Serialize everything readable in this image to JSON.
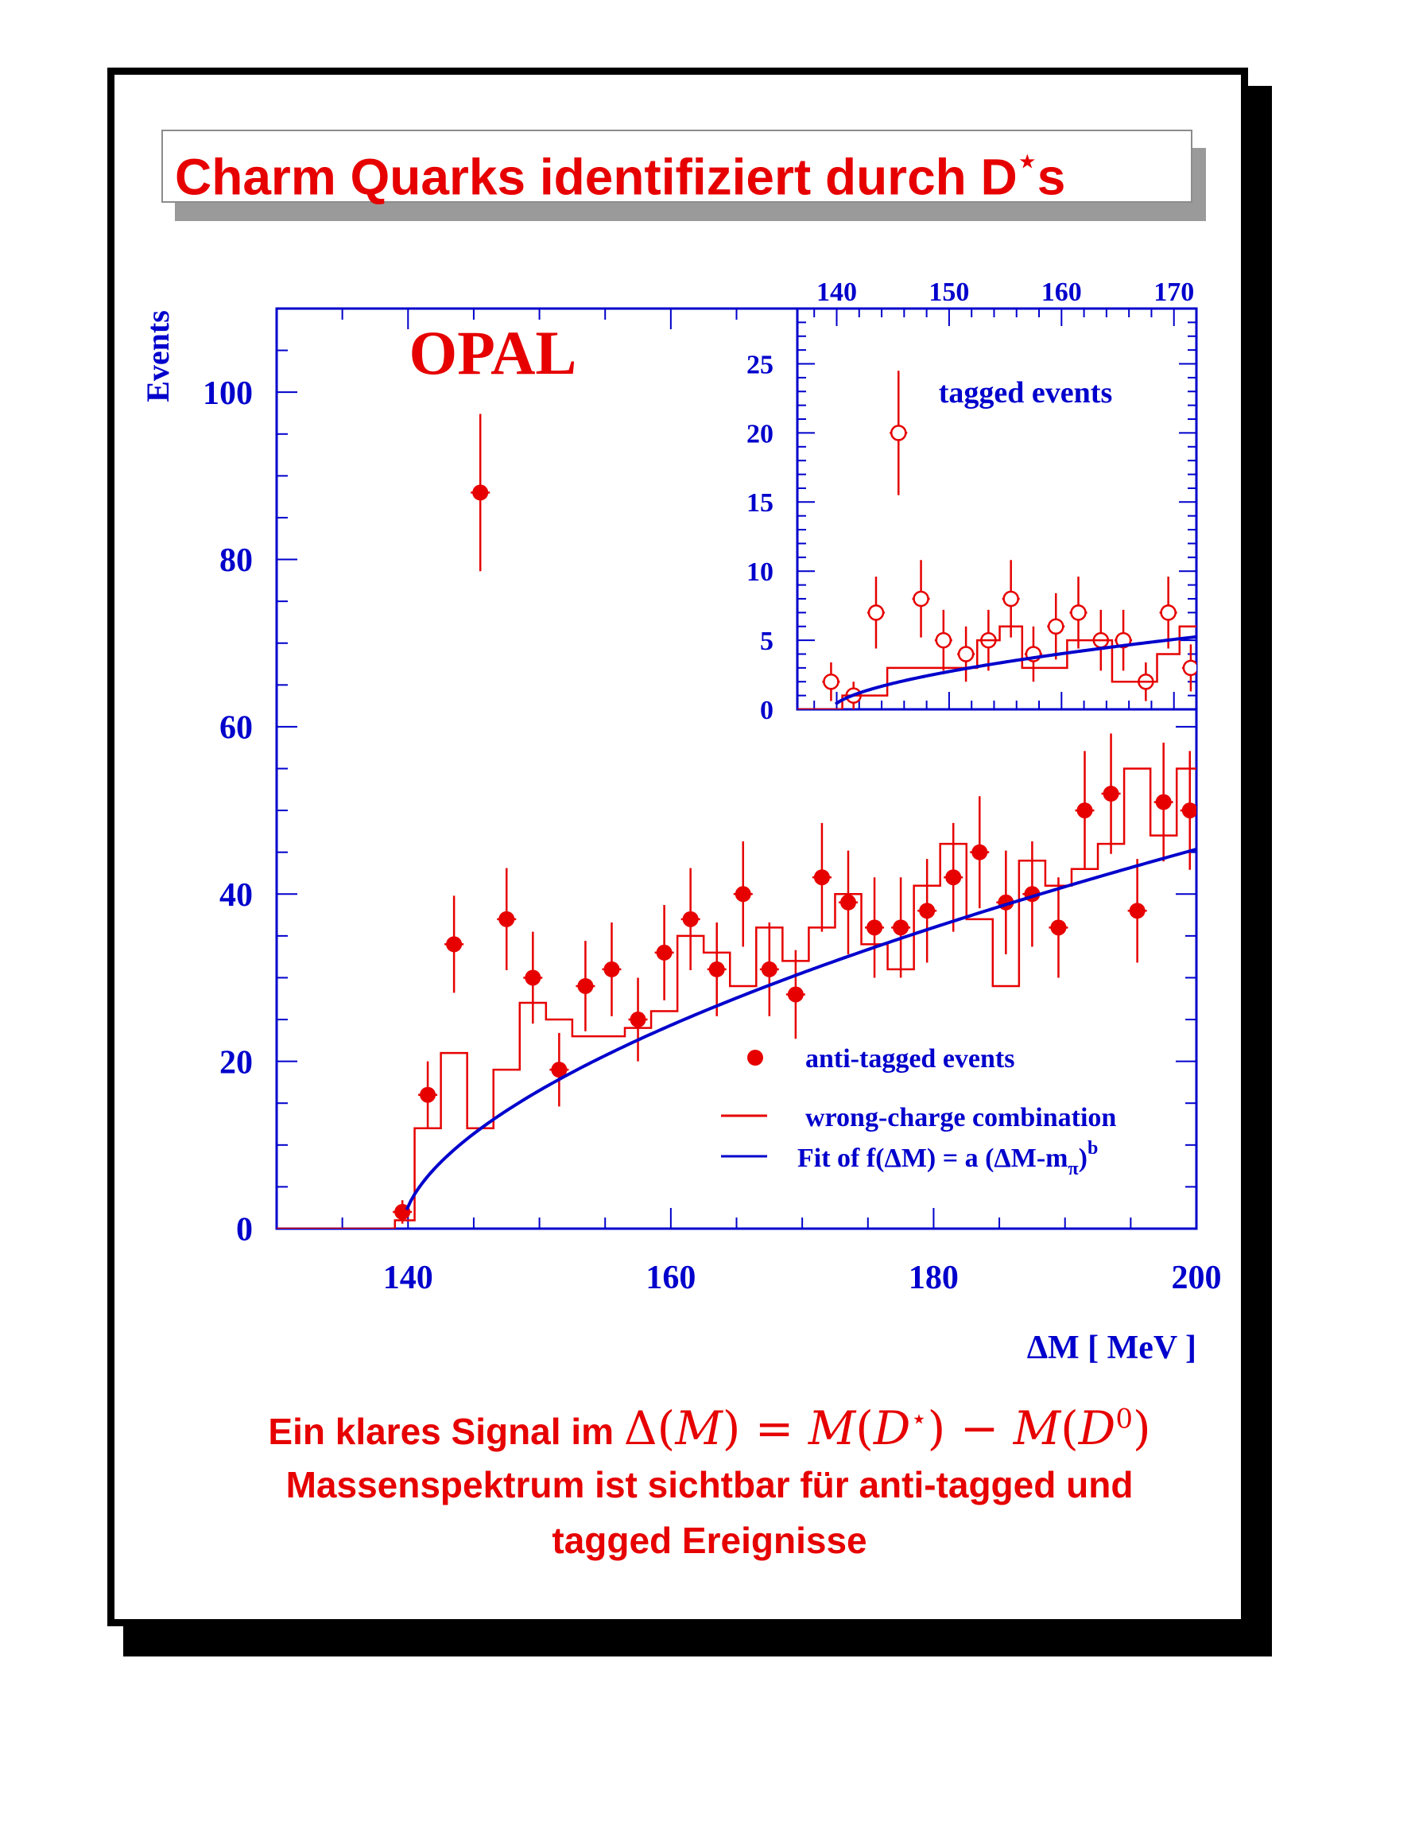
{
  "title": {
    "text": "Charm Quarks identifiziert durch D",
    "superscript": "⋆",
    "suffix": "s"
  },
  "caption": {
    "line1_text": "Ein klares Signal im",
    "line1_math": "Δ(M) = M(D⋆) − M(D0)",
    "line2": "Massenspektrum ist sichtbar für anti-tagged und",
    "line3": "tagged Ereignisse"
  },
  "colors": {
    "text_red": "#e60000",
    "axis_blue": "#0000cc",
    "data_red": "#e60000",
    "fit_blue": "#0000cc"
  },
  "chart_data": [
    {
      "type": "scatter",
      "panel": "main",
      "title": "OPAL",
      "ylabel": "Events",
      "xlabel": "ΔM [ MeV ]",
      "xlim": [
        130,
        200
      ],
      "ylim": [
        0,
        110
      ],
      "x_ticks": [
        140,
        160,
        180,
        200
      ],
      "y_ticks": [
        0,
        20,
        40,
        60,
        80,
        100
      ],
      "legend": {
        "placement": "bottom-right",
        "entries": [
          "anti-tagged events",
          "wrong-charge combination",
          "Fit of f(ΔM) = a (ΔM-mπ)b"
        ]
      },
      "series": [
        {
          "name": "anti-tagged events",
          "kind": "points_with_errors",
          "x": [
            139.57,
            141.5,
            143.5,
            145.5,
            147.5,
            149.5,
            151.5,
            153.5,
            155.5,
            157.5,
            159.5,
            161.5,
            163.5,
            165.5,
            167.5,
            169.5,
            171.5,
            173.5,
            175.5,
            177.5,
            179.5,
            181.5,
            183.5,
            185.5,
            187.5,
            189.5,
            191.5,
            193.5,
            195.5,
            197.5,
            199.5
          ],
          "y": [
            2,
            16,
            34,
            88,
            37,
            30,
            19,
            29,
            31,
            25,
            33,
            37,
            31,
            40,
            31,
            28,
            42,
            39,
            36,
            36,
            38,
            42,
            45,
            39,
            40,
            36,
            50,
            52,
            38,
            51,
            50
          ],
          "yerr": [
            1.4,
            4,
            5.8,
            9.4,
            6.1,
            5.5,
            4.4,
            5.4,
            5.6,
            5,
            5.7,
            6.1,
            5.6,
            6.3,
            5.6,
            5.3,
            6.5,
            6.2,
            6,
            6,
            6.2,
            6.5,
            6.7,
            6.2,
            6.3,
            6,
            7.1,
            7.2,
            6.2,
            7.1,
            7.1
          ]
        },
        {
          "name": "wrong-charge combination",
          "kind": "histogram",
          "edges": [
            130,
            139,
            140.5,
            142.5,
            144.5,
            146.5,
            148.5,
            150.5,
            152.5,
            154.5,
            156.5,
            158.5,
            160.5,
            162.5,
            164.5,
            166.5,
            168.5,
            170.5,
            172.5,
            174.5,
            176.5,
            178.5,
            180.5,
            182.5,
            184.5,
            186.5,
            188.5,
            190.5,
            192.5,
            194.5,
            196.5,
            198.5,
            200
          ],
          "values": [
            0,
            1,
            12,
            21,
            12,
            19,
            27,
            25,
            23,
            23,
            24,
            26,
            35,
            33,
            29,
            36,
            32,
            36,
            40,
            34,
            31,
            41,
            46,
            37,
            29,
            44,
            41,
            43,
            46,
            55,
            47,
            55
          ]
        },
        {
          "name": "Fit of f(ΔM) = a (ΔM-mπ)b",
          "kind": "curve",
          "formula": "a (ΔM-mπ)^b",
          "m_pi": 139.57,
          "a": 4.29,
          "b": 0.575,
          "x_range": [
            139.9,
            200
          ]
        }
      ]
    },
    {
      "type": "scatter",
      "panel": "inset",
      "title": "tagged events",
      "xlim": [
        136.5,
        172
      ],
      "ylim": [
        0,
        29
      ],
      "x_ticks": [
        140,
        150,
        160,
        170
      ],
      "y_ticks": [
        0,
        5,
        10,
        15,
        20,
        25
      ],
      "series": [
        {
          "name": "tagged events",
          "kind": "open_points_with_errors",
          "x": [
            139.5,
            141.5,
            143.5,
            145.5,
            147.5,
            149.5,
            151.5,
            153.5,
            155.5,
            157.5,
            159.5,
            161.5,
            163.5,
            165.5,
            167.5,
            169.5,
            171.5
          ],
          "y": [
            2,
            1,
            7,
            20,
            8,
            5,
            4,
            5,
            8,
            4,
            6,
            7,
            5,
            5,
            2,
            7,
            3
          ],
          "yerr": [
            1.4,
            1,
            2.6,
            4.5,
            2.8,
            2.2,
            2,
            2.2,
            2.8,
            2,
            2.4,
            2.6,
            2.2,
            2.2,
            1.4,
            2.6,
            1.7
          ]
        },
        {
          "name": "wrong-charge histogram",
          "kind": "histogram",
          "edges": [
            136.5,
            140.5,
            142.5,
            144.5,
            146.5,
            148.5,
            150.5,
            152.5,
            154.5,
            156.5,
            158.5,
            160.5,
            162.5,
            164.5,
            166.5,
            168.5,
            170.5,
            172
          ],
          "values": [
            0,
            1,
            1,
            3,
            3,
            3,
            3,
            5,
            6,
            3,
            3,
            5,
            5,
            2,
            2,
            4,
            6
          ]
        },
        {
          "name": "fit",
          "kind": "curve",
          "a": 0.71,
          "b": 0.575,
          "m_pi": 139.57,
          "x_range": [
            139.9,
            172
          ]
        }
      ]
    }
  ]
}
